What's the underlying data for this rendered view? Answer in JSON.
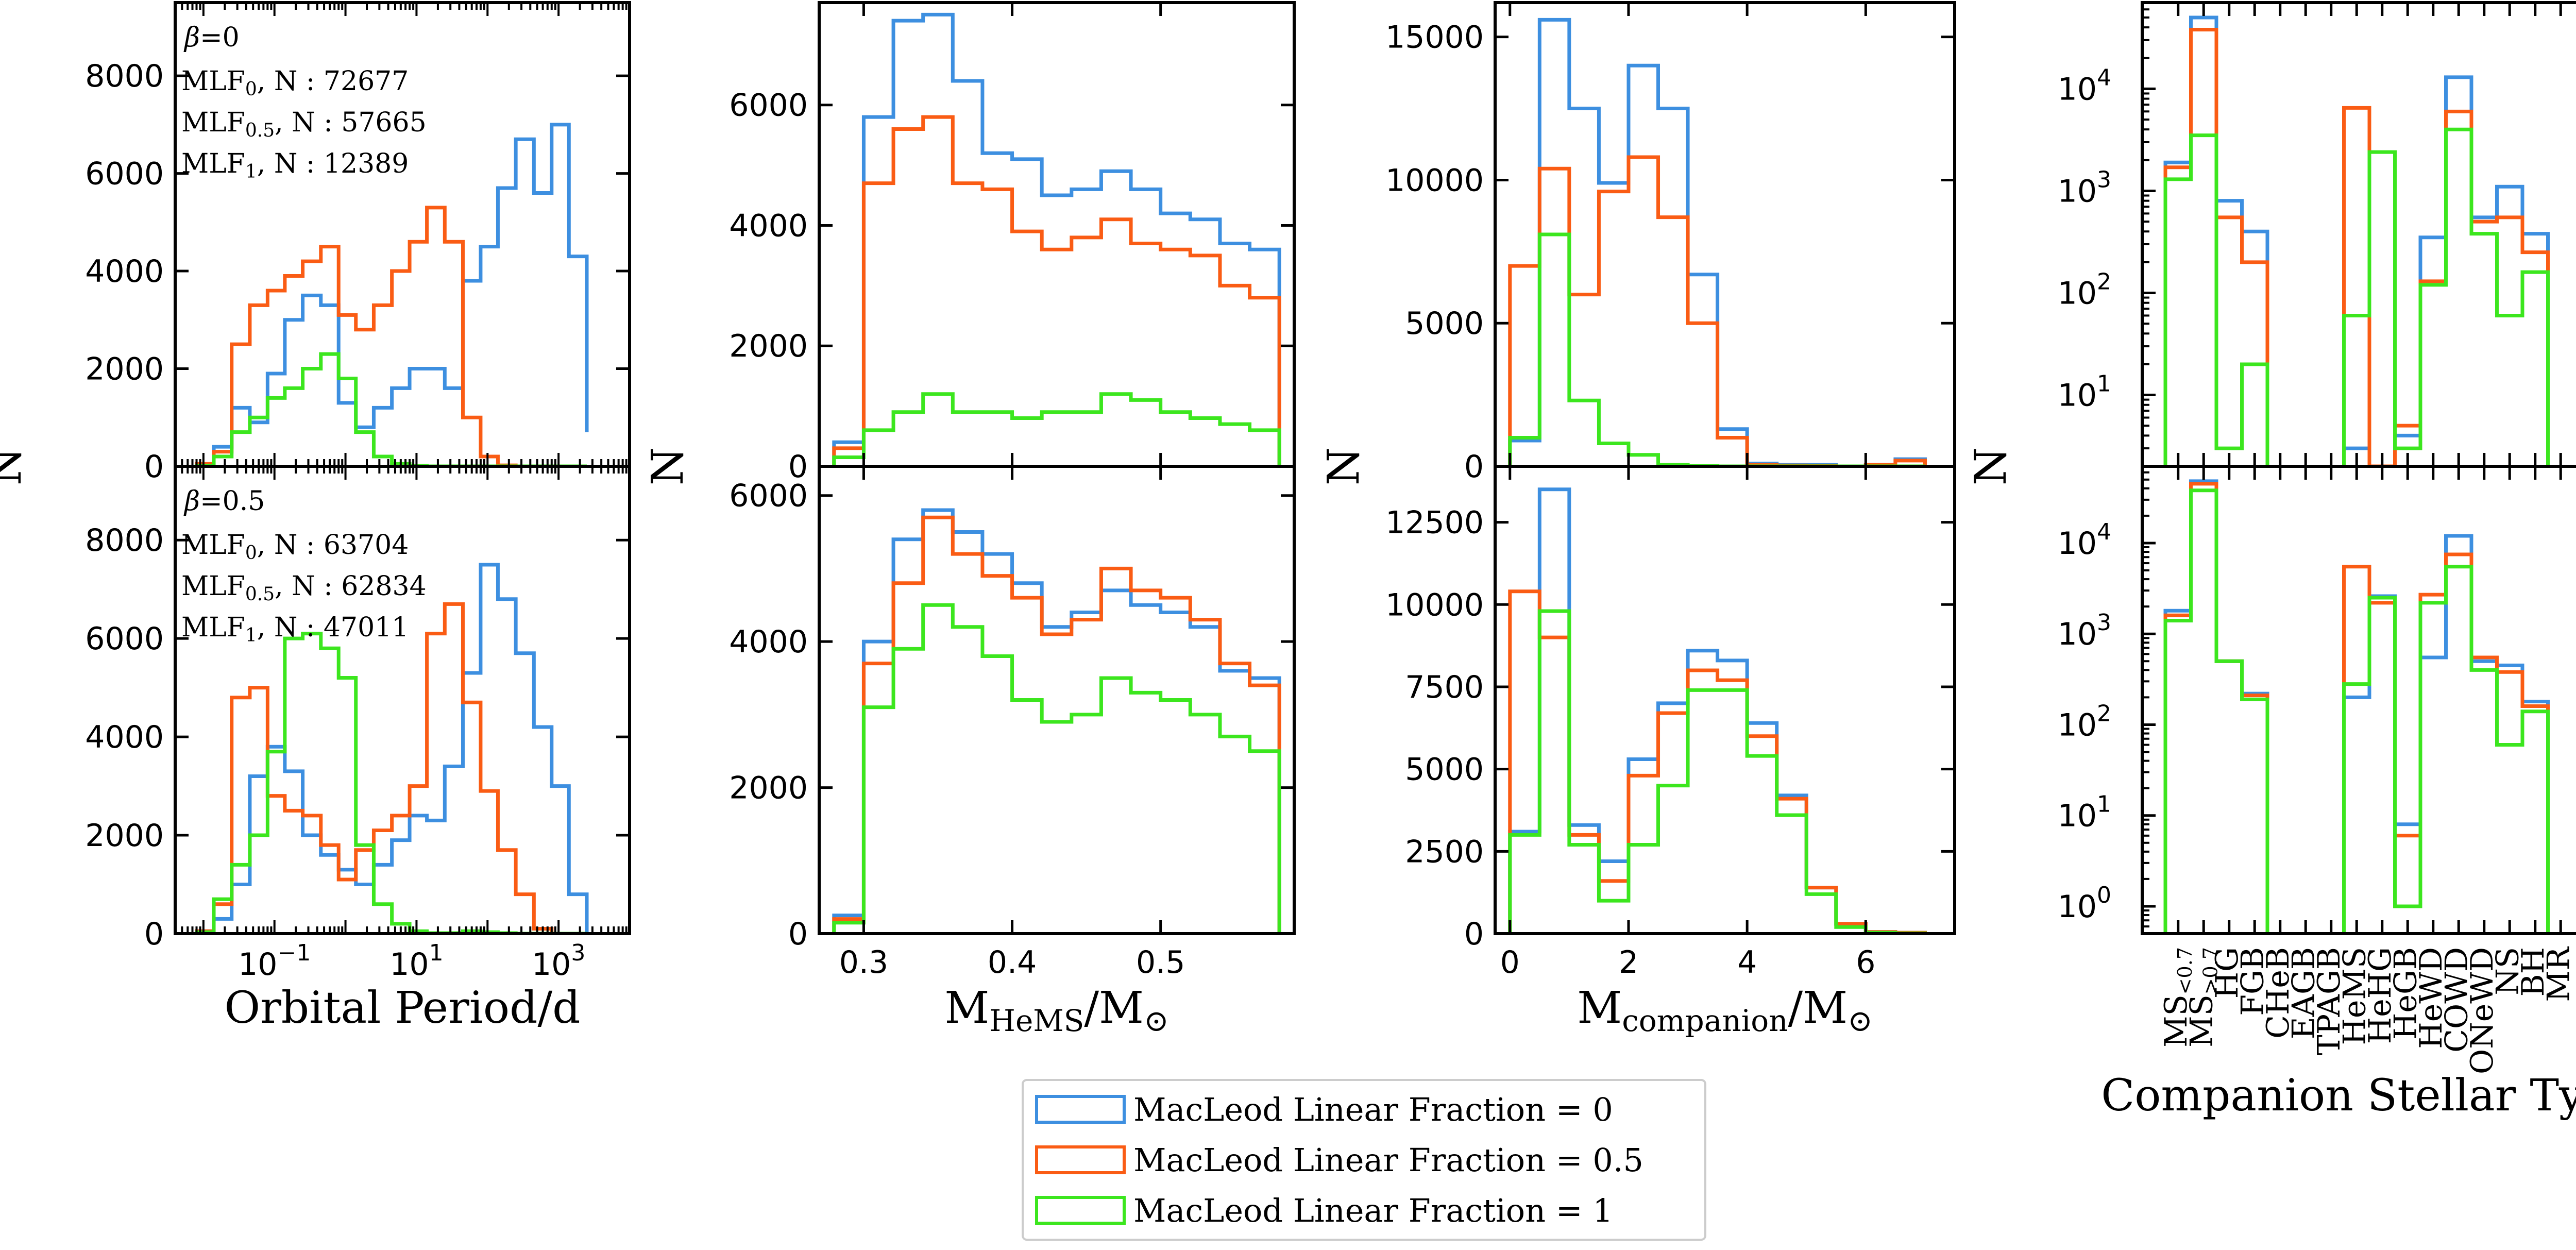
{
  "colors": {
    "mlf0": "#3d8fe0",
    "mlf05": "#fa5c14",
    "mlf1": "#3ce61e"
  },
  "legend": {
    "items": [
      {
        "label": "MacLeod Linear Fraction = 0",
        "color_key": "mlf0"
      },
      {
        "label": "MacLeod Linear Fraction = 0.5",
        "color_key": "mlf05"
      },
      {
        "label": "MacLeod Linear Fraction = 1",
        "color_key": "mlf1"
      }
    ]
  },
  "chart_data": [
    {
      "id": "period_b0",
      "type": "step-histogram",
      "xscale": "log",
      "xlim": [
        0.004,
        10000
      ],
      "ylim": [
        0,
        9500
      ],
      "yticks": [
        0,
        2000,
        4000,
        6000,
        8000
      ],
      "ytick_labels": [
        "0",
        "2000",
        "4000",
        "6000",
        "8000"
      ],
      "xticks": [],
      "xtick_labels": [],
      "xlabel": "",
      "ylabel": "N",
      "annotations": {
        "beta_symbol": "β",
        "beta_value": "=0",
        "lines": [
          {
            "prefix": "MLF",
            "sub": "0",
            "suffix": ", N : 72677"
          },
          {
            "prefix": "MLF",
            "sub": "0.5",
            "suffix": ", N : 57665"
          },
          {
            "prefix": "MLF",
            "sub": "1",
            "suffix": ", N : 12389"
          }
        ]
      },
      "edges": [
        0.008,
        0.014,
        0.025,
        0.045,
        0.08,
        0.14,
        0.25,
        0.45,
        0.8,
        1.4,
        2.5,
        4.5,
        8,
        14,
        25,
        45,
        80,
        140,
        250,
        450,
        800,
        1400,
        2500
      ],
      "series": [
        {
          "name": "MLF0",
          "color_key": "mlf0",
          "values": [
            30,
            400,
            1200,
            900,
            1900,
            3000,
            3500,
            3300,
            1300,
            800,
            1200,
            1600,
            2000,
            2000,
            1600,
            3800,
            4500,
            5700,
            6700,
            5600,
            7000,
            4300,
            700
          ]
        },
        {
          "name": "MLF0.5",
          "color_key": "mlf05",
          "values": [
            50,
            300,
            2500,
            3300,
            3600,
            3900,
            4200,
            4500,
            3100,
            2800,
            3300,
            4000,
            4600,
            5300,
            4600,
            1000,
            200,
            20,
            0,
            0,
            0,
            0,
            0
          ]
        },
        {
          "name": "MLF1",
          "color_key": "mlf1",
          "values": [
            10,
            200,
            700,
            1000,
            1400,
            1600,
            2000,
            2300,
            1800,
            700,
            200,
            50,
            10,
            0,
            0,
            0,
            0,
            0,
            0,
            0,
            0,
            0,
            0
          ]
        }
      ]
    },
    {
      "id": "mass_b0",
      "type": "step-histogram",
      "xscale": "linear",
      "xlim": [
        0.27,
        0.59
      ],
      "ylim": [
        0,
        7700
      ],
      "yticks": [
        0,
        2000,
        4000,
        6000
      ],
      "ytick_labels": [
        "0",
        "2000",
        "4000",
        "6000"
      ],
      "xticks": [],
      "xtick_labels": [],
      "xlabel": "",
      "ylabel": "N",
      "edges": [
        0.28,
        0.3,
        0.32,
        0.34,
        0.36,
        0.38,
        0.4,
        0.42,
        0.44,
        0.46,
        0.48,
        0.5,
        0.52,
        0.54,
        0.56,
        0.58
      ],
      "series": [
        {
          "name": "MLF0",
          "color_key": "mlf0",
          "values": [
            400,
            5800,
            7400,
            7500,
            6400,
            5200,
            5100,
            4500,
            4600,
            4900,
            4600,
            4200,
            4100,
            3700,
            3600
          ]
        },
        {
          "name": "MLF0.5",
          "color_key": "mlf05",
          "values": [
            300,
            4700,
            5600,
            5800,
            4700,
            4600,
            3900,
            3600,
            3800,
            4100,
            3700,
            3600,
            3500,
            3000,
            2800
          ]
        },
        {
          "name": "MLF1",
          "color_key": "mlf1",
          "values": [
            150,
            600,
            900,
            1200,
            900,
            900,
            800,
            900,
            900,
            1200,
            1100,
            900,
            800,
            700,
            600
          ]
        }
      ]
    },
    {
      "id": "comp_b0",
      "type": "step-histogram",
      "xscale": "linear",
      "xlim": [
        -0.25,
        7.5
      ],
      "ylim": [
        0,
        16200
      ],
      "yticks": [
        0,
        5000,
        10000,
        15000
      ],
      "ytick_labels": [
        "0",
        "5000",
        "10000",
        "15000"
      ],
      "xticks": [],
      "xtick_labels": [],
      "xlabel": "",
      "ylabel": "N",
      "edges": [
        0,
        0.5,
        1,
        1.5,
        2,
        2.5,
        3,
        3.5,
        4,
        4.5,
        5,
        5.5,
        6,
        6.5,
        7
      ],
      "series": [
        {
          "name": "MLF0",
          "color_key": "mlf0",
          "values": [
            900,
            15600,
            12500,
            9900,
            14000,
            12500,
            6700,
            1300,
            100,
            50,
            50,
            0,
            50,
            250
          ]
        },
        {
          "name": "MLF0.5",
          "color_key": "mlf05",
          "values": [
            7000,
            10400,
            6000,
            9600,
            10800,
            8700,
            5000,
            1000,
            50,
            30,
            20,
            0,
            50,
            200
          ]
        },
        {
          "name": "MLF1",
          "color_key": "mlf1",
          "values": [
            1000,
            8100,
            2300,
            800,
            400,
            50,
            10,
            0,
            0,
            0,
            0,
            0,
            0,
            0
          ]
        }
      ]
    },
    {
      "id": "type_b0",
      "type": "step-histogram",
      "xscale": "categorical",
      "yscale": "log",
      "ylim": [
        2,
        70000
      ],
      "yticks": [
        10,
        100,
        1000,
        10000
      ],
      "ytick_labels": [
        {
          "base": "10",
          "exp": "1"
        },
        {
          "base": "10",
          "exp": "2"
        },
        {
          "base": "10",
          "exp": "3"
        },
        {
          "base": "10",
          "exp": "4"
        }
      ],
      "xlabel": "",
      "ylabel": "N",
      "categories": [
        "MS<0.7",
        "MS>0.7",
        "HG",
        "FGB",
        "CHeB",
        "EAGB",
        "TPAGB",
        "HeMS",
        "HeHG",
        "HeGB",
        "HeWD",
        "COWD",
        "ONeWD",
        "NS",
        "BH",
        "MR"
      ],
      "series": [
        {
          "name": "MLF0",
          "color_key": "mlf0",
          "values": [
            1900,
            50000,
            800,
            400,
            0,
            0,
            0,
            3,
            2,
            4,
            350,
            13000,
            550,
            1100,
            380,
            0
          ]
        },
        {
          "name": "MLF0.5",
          "color_key": "mlf05",
          "values": [
            1700,
            38000,
            550,
            200,
            0,
            0,
            0,
            6500,
            2,
            5,
            130,
            6000,
            500,
            550,
            250,
            0
          ]
        },
        {
          "name": "MLF1",
          "color_key": "mlf1",
          "values": [
            1300,
            3500,
            3,
            20,
            0,
            0,
            0,
            60,
            2400,
            3,
            120,
            4000,
            380,
            60,
            160,
            0
          ]
        }
      ]
    },
    {
      "id": "period_b05",
      "type": "step-histogram",
      "xscale": "log",
      "xlim": [
        0.004,
        10000
      ],
      "ylim": [
        0,
        9500
      ],
      "yticks": [
        0,
        2000,
        4000,
        6000,
        8000
      ],
      "ytick_labels": [
        "0",
        "2000",
        "4000",
        "6000",
        "8000"
      ],
      "xticks": [
        0.1,
        10,
        1000
      ],
      "xtick_labels": [
        {
          "base": "10",
          "exp": "−1"
        },
        {
          "base": "10",
          "exp": "1"
        },
        {
          "base": "10",
          "exp": "3"
        }
      ],
      "xlabel": "Orbital Period/d",
      "ylabel": "N",
      "annotations": {
        "beta_symbol": "β",
        "beta_value": "=0.5",
        "lines": [
          {
            "prefix": "MLF",
            "sub": "0",
            "suffix": ", N : 63704"
          },
          {
            "prefix": "MLF",
            "sub": "0.5",
            "suffix": ", N : 62834"
          },
          {
            "prefix": "MLF",
            "sub": "1",
            "suffix": ", N : 47011"
          }
        ]
      },
      "edges": [
        0.008,
        0.014,
        0.025,
        0.045,
        0.08,
        0.14,
        0.25,
        0.45,
        0.8,
        1.4,
        2.5,
        4.5,
        8,
        14,
        25,
        45,
        80,
        140,
        250,
        450,
        800,
        1400,
        2500
      ],
      "series": [
        {
          "name": "MLF0",
          "color_key": "mlf0",
          "values": [
            50,
            300,
            1000,
            3200,
            3800,
            3300,
            2000,
            1600,
            1300,
            1000,
            1400,
            1900,
            2400,
            2300,
            3400,
            5300,
            7500,
            6800,
            5700,
            4200,
            3000,
            800,
            0
          ]
        },
        {
          "name": "MLF0.5",
          "color_key": "mlf05",
          "values": [
            50,
            600,
            4800,
            5000,
            2800,
            2500,
            2400,
            1800,
            1100,
            1700,
            2100,
            2400,
            3000,
            6100,
            6700,
            4700,
            2900,
            1700,
            800,
            100,
            0,
            0,
            0
          ]
        },
        {
          "name": "MLF1",
          "color_key": "mlf1",
          "values": [
            30,
            700,
            1400,
            2000,
            3700,
            6000,
            6100,
            5800,
            5200,
            1800,
            600,
            200,
            50,
            10,
            10,
            50,
            30,
            10,
            0,
            0,
            0,
            0,
            0
          ]
        }
      ]
    },
    {
      "id": "mass_b05",
      "type": "step-histogram",
      "xscale": "linear",
      "xlim": [
        0.27,
        0.59
      ],
      "ylim": [
        0,
        6400
      ],
      "yticks": [
        0,
        2000,
        4000,
        6000
      ],
      "ytick_labels": [
        "0",
        "2000",
        "4000",
        "6000"
      ],
      "xticks": [
        0.3,
        0.4,
        0.5
      ],
      "xtick_labels": [
        "0.3",
        "0.4",
        "0.5"
      ],
      "xlabel": "M",
      "xlabel_sub": "HeMS",
      "xlabel_mid": "/M",
      "xlabel_sun": "⊙",
      "ylabel": "N",
      "edges": [
        0.28,
        0.3,
        0.32,
        0.34,
        0.36,
        0.38,
        0.4,
        0.42,
        0.44,
        0.46,
        0.48,
        0.5,
        0.52,
        0.54,
        0.56,
        0.58
      ],
      "series": [
        {
          "name": "MLF0",
          "color_key": "mlf0",
          "values": [
            250,
            4000,
            5400,
            5800,
            5500,
            5200,
            4800,
            4200,
            4400,
            4700,
            4500,
            4400,
            4200,
            3600,
            3500
          ]
        },
        {
          "name": "MLF0.5",
          "color_key": "mlf05",
          "values": [
            200,
            3700,
            4800,
            5700,
            5200,
            4900,
            4600,
            4100,
            4300,
            5000,
            4700,
            4600,
            4300,
            3700,
            3400
          ]
        },
        {
          "name": "MLF1",
          "color_key": "mlf1",
          "values": [
            150,
            3100,
            3900,
            4500,
            4200,
            3800,
            3200,
            2900,
            3000,
            3500,
            3300,
            3200,
            3000,
            2700,
            2500
          ]
        }
      ]
    },
    {
      "id": "comp_b05",
      "type": "step-histogram",
      "xscale": "linear",
      "xlim": [
        -0.25,
        7.5
      ],
      "ylim": [
        0,
        14200
      ],
      "yticks": [
        0,
        2500,
        5000,
        7500,
        10000,
        12500
      ],
      "ytick_labels": [
        "0",
        "2500",
        "5000",
        "7500",
        "10000",
        "12500"
      ],
      "xticks": [
        0,
        2,
        4,
        6
      ],
      "xtick_labels": [
        "0",
        "2",
        "4",
        "6"
      ],
      "xlabel": "M",
      "xlabel_sub": "companion",
      "xlabel_mid": "/M",
      "xlabel_sun": "⊙",
      "ylabel": "N",
      "edges": [
        0,
        0.5,
        1,
        1.5,
        2,
        2.5,
        3,
        3.5,
        4,
        4.5,
        5,
        5.5,
        6,
        6.5,
        7
      ],
      "series": [
        {
          "name": "MLF0",
          "color_key": "mlf0",
          "values": [
            3100,
            13500,
            3300,
            2200,
            5300,
            7000,
            8600,
            8300,
            6400,
            4200,
            1400,
            300,
            50,
            30
          ]
        },
        {
          "name": "MLF0.5",
          "color_key": "mlf05",
          "values": [
            10400,
            9000,
            3000,
            1600,
            4800,
            6700,
            8000,
            7700,
            6000,
            4100,
            1400,
            300,
            50,
            30
          ]
        },
        {
          "name": "MLF1",
          "color_key": "mlf1",
          "values": [
            3000,
            9800,
            2700,
            1000,
            2700,
            4500,
            7400,
            7400,
            5400,
            3600,
            1200,
            200,
            30,
            10
          ]
        }
      ]
    },
    {
      "id": "type_b05",
      "type": "step-histogram",
      "xscale": "categorical",
      "yscale": "log",
      "ylim": [
        0.5,
        70000
      ],
      "yticks": [
        1,
        10,
        100,
        1000,
        10000
      ],
      "ytick_labels": [
        {
          "base": "10",
          "exp": "0"
        },
        {
          "base": "10",
          "exp": "1"
        },
        {
          "base": "10",
          "exp": "2"
        },
        {
          "base": "10",
          "exp": "3"
        },
        {
          "base": "10",
          "exp": "4"
        }
      ],
      "xlabel": "Companion Stellar Type",
      "ylabel": "N",
      "categories": [
        "MS<0.7",
        "MS>0.7",
        "HG",
        "FGB",
        "CHeB",
        "EAGB",
        "TPAGB",
        "HeMS",
        "HeHG",
        "HeGB",
        "HeWD",
        "COWD",
        "ONeWD",
        "NS",
        "BH",
        "MR"
      ],
      "tick_labels": [
        {
          "base": "MS",
          "sub": "<0.7"
        },
        {
          "base": "MS",
          "sub": ">0.7"
        },
        {
          "base": "HG",
          "sub": ""
        },
        {
          "base": "FGB",
          "sub": ""
        },
        {
          "base": "CHeB",
          "sub": ""
        },
        {
          "base": "EAGB",
          "sub": ""
        },
        {
          "base": "TPAGB",
          "sub": ""
        },
        {
          "base": "HeMS",
          "sub": ""
        },
        {
          "base": "HeHG",
          "sub": ""
        },
        {
          "base": "HeGB",
          "sub": ""
        },
        {
          "base": "HeWD",
          "sub": ""
        },
        {
          "base": "COWD",
          "sub": ""
        },
        {
          "base": "ONeWD",
          "sub": ""
        },
        {
          "base": "NS",
          "sub": ""
        },
        {
          "base": "BH",
          "sub": ""
        },
        {
          "base": "MR",
          "sub": ""
        }
      ],
      "series": [
        {
          "name": "MLF0",
          "color_key": "mlf0",
          "values": [
            1800,
            48000,
            500,
            220,
            0,
            0,
            0,
            200,
            2600,
            8,
            550,
            12000,
            500,
            450,
            180,
            0
          ]
        },
        {
          "name": "MLF0.5",
          "color_key": "mlf05",
          "values": [
            1600,
            45000,
            500,
            210,
            0,
            0,
            0,
            5500,
            2200,
            6,
            2700,
            7500,
            550,
            380,
            160,
            0
          ]
        },
        {
          "name": "MLF1",
          "color_key": "mlf1",
          "values": [
            1400,
            38000,
            500,
            190,
            0,
            0,
            0,
            280,
            2500,
            1,
            2200,
            5500,
            400,
            60,
            140,
            0
          ]
        }
      ]
    }
  ]
}
